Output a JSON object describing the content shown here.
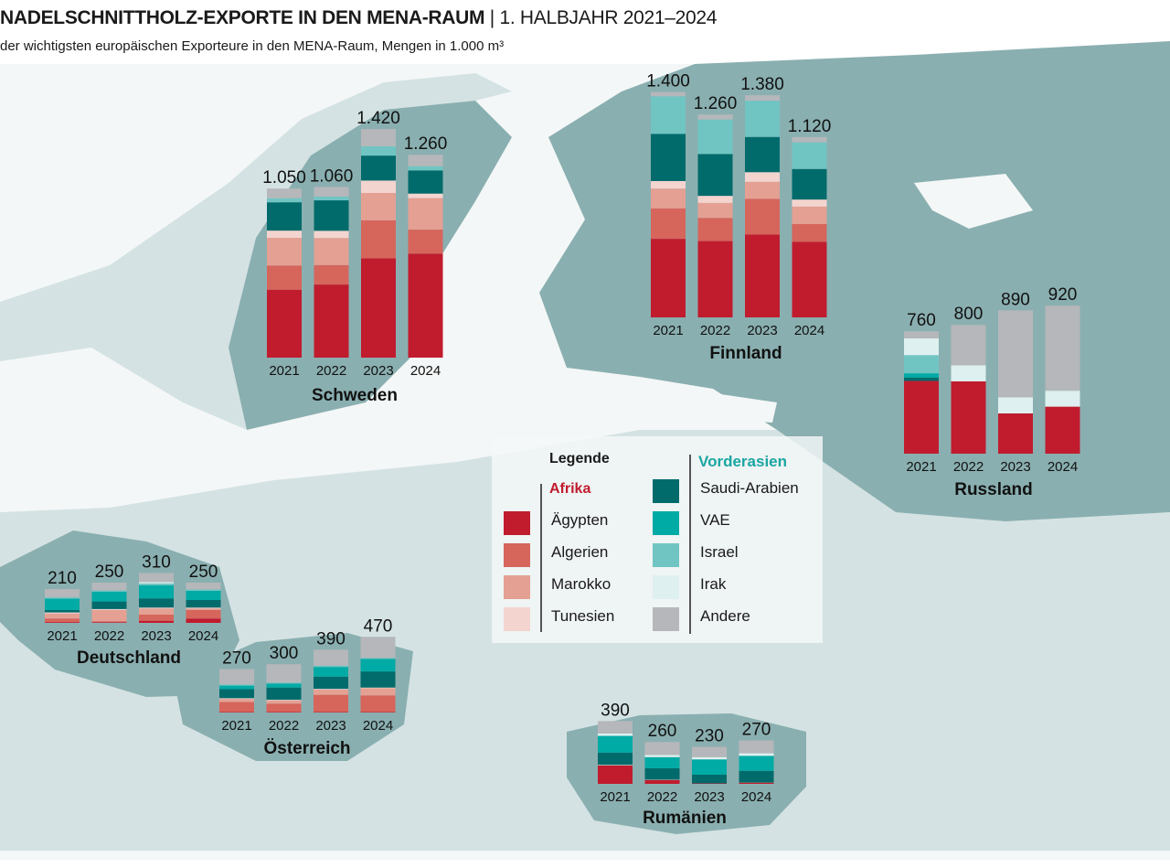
{
  "header": {
    "title_bold": "NADELSCHNITTHOLZ-EXPORTE IN DEN MENA-RAUM",
    "title_sep": "|",
    "title_period": "1. HALBJAHR 2021–2024",
    "subtitle": "der wichtigsten europäischen Exporteure in den MENA-Raum, Mengen in 1.000 m³"
  },
  "legend": {
    "title": "Legende",
    "group_africa": "Afrika",
    "group_asia": "Vorderasien",
    "africa_items": [
      "Ägypten",
      "Algerien",
      "Marokko",
      "Tunesien"
    ],
    "asia_items": [
      "Saudi-Arabien",
      "VAE",
      "Israel",
      "Irak",
      "Andere"
    ]
  },
  "colors": {
    "Ägypten": "#c01c2e",
    "Algerien": "#d6655c",
    "Marokko": "#e4a093",
    "Tunesien": "#f4d4cf",
    "Saudi-Arabien": "#016b6b",
    "VAE": "#00aaa5",
    "Israel": "#70c5c3",
    "Irak": "#def0ef",
    "Andere": "#b5b7ba",
    "africa_heading": "#c01c2e",
    "asia_heading": "#1aa6a2",
    "land_dark": "#8aafb0",
    "land_light": "#d4e2e3",
    "sea": "#ffffff"
  },
  "chart_data": {
    "type": "bar",
    "stacked": true,
    "title": "NADELSCHNITTHOLZ-EXPORTE IN DEN MENA-RAUM | 1. HALBJAHR 2021–2024",
    "unit": "1.000 m³",
    "categories": [
      "2021",
      "2022",
      "2023",
      "2024"
    ],
    "segments": [
      "Ägypten",
      "Algerien",
      "Marokko",
      "Tunesien",
      "Saudi-Arabien",
      "VAE",
      "Israel",
      "Irak",
      "Andere"
    ],
    "countries": [
      {
        "name": "Schweden",
        "totals": [
          "1.050",
          "1.060",
          "1.420",
          "1.260"
        ],
        "values": [
          [
            422,
            150,
            172,
            45,
            176,
            0,
            25,
            0,
            60
          ],
          [
            454,
            121,
            168,
            45,
            189,
            0,
            23,
            0,
            60
          ],
          [
            617,
            236,
            170,
            77,
            155,
            0,
            57,
            0,
            108
          ],
          [
            646,
            149,
            196,
            28,
            144,
            0,
            26,
            0,
            71
          ]
        ]
      },
      {
        "name": "Finnland",
        "totals": [
          "1.400",
          "1.260",
          "1.380",
          "1.120"
        ],
        "values": [
          [
            488,
            189,
            123,
            47,
            293,
            0,
            233,
            0,
            27
          ],
          [
            474,
            144,
            93,
            44,
            260,
            0,
            214,
            0,
            31
          ],
          [
            515,
            221,
            106,
            60,
            219,
            0,
            225,
            0,
            34
          ],
          [
            470,
            110,
            108,
            44,
            190,
            0,
            165,
            0,
            33
          ]
        ]
      },
      {
        "name": "Russland",
        "totals": [
          "760",
          "800",
          "890",
          "920"
        ],
        "values": [
          [
            452,
            0,
            0,
            0,
            21,
            26,
            113,
            104,
            44
          ],
          [
            449,
            0,
            0,
            0,
            0,
            0,
            0,
            100,
            251
          ],
          [
            250,
            0,
            0,
            0,
            0,
            0,
            0,
            100,
            540
          ],
          [
            292,
            0,
            0,
            0,
            0,
            0,
            0,
            99,
            529
          ]
        ]
      },
      {
        "name": "Deutschland",
        "totals": [
          "210",
          "250",
          "310",
          "250"
        ],
        "values": [
          [
            5,
            22,
            31,
            7,
            15,
            70,
            9,
            0,
            51
          ],
          [
            4,
            6,
            70,
            6,
            47,
            61,
            8,
            0,
            48
          ],
          [
            13,
            38,
            38,
            6,
            57,
            81,
            12,
            8,
            57
          ],
          [
            27,
            53,
            9,
            6,
            47,
            57,
            9,
            0,
            42
          ]
        ]
      },
      {
        "name": "Österreich",
        "totals": [
          "270",
          "300",
          "390",
          "470"
        ],
        "values": [
          [
            4,
            61,
            19,
            5,
            56,
            22,
            7,
            0,
            96
          ],
          [
            4,
            51,
            19,
            5,
            76,
            25,
            6,
            0,
            114
          ],
          [
            4,
            106,
            32,
            5,
            76,
            60,
            8,
            0,
            99
          ],
          [
            4,
            102,
            45,
            4,
            100,
            78,
            6,
            0,
            131
          ]
        ]
      },
      {
        "name": "Rumänien",
        "totals": [
          "390",
          "260",
          "230",
          "270"
        ],
        "values": [
          [
            114,
            0,
            0,
            4,
            76,
            104,
            0,
            15,
            77
          ],
          [
            24,
            0,
            0,
            2,
            71,
            69,
            0,
            14,
            80
          ],
          [
            3,
            0,
            0,
            0,
            54,
            95,
            0,
            14,
            64
          ],
          [
            6,
            2,
            0,
            0,
            73,
            93,
            0,
            16,
            80
          ]
        ]
      }
    ]
  }
}
